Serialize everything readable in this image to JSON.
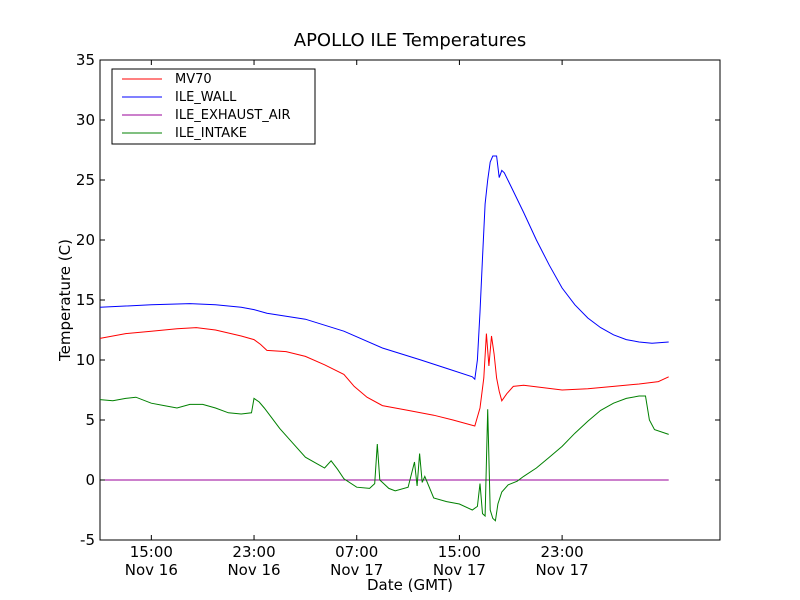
{
  "chart_data": {
    "type": "line",
    "title": "APOLLO ILE Temperatures",
    "xlabel": "Date (GMT)",
    "ylabel": "Temperature (C)",
    "ylim": [
      -5,
      35
    ],
    "xlim_hours": [
      11.0,
      59.3
    ],
    "grid": false,
    "legend_position": "top-left",
    "y_ticks": [
      "-5",
      "0",
      "5",
      "10",
      "15",
      "20",
      "25",
      "30",
      "35"
    ],
    "x_ticks": [
      {
        "hour": 15,
        "time": "15:00",
        "date": "Nov 16"
      },
      {
        "hour": 23,
        "time": "23:00",
        "date": "Nov 16"
      },
      {
        "hour": 31,
        "time": "07:00",
        "date": "Nov 17"
      },
      {
        "hour": 39,
        "time": "15:00",
        "date": "Nov 17"
      },
      {
        "hour": 47,
        "time": "23:00",
        "date": "Nov 17"
      }
    ],
    "series": [
      {
        "name": "MV70",
        "color": "#ff0000",
        "points": [
          [
            11.0,
            11.8
          ],
          [
            13.0,
            12.2
          ],
          [
            15.0,
            12.4
          ],
          [
            17.0,
            12.6
          ],
          [
            18.5,
            12.7
          ],
          [
            20.0,
            12.5
          ],
          [
            22.0,
            12.0
          ],
          [
            23.0,
            11.7
          ],
          [
            23.5,
            11.3
          ],
          [
            24.0,
            10.8
          ],
          [
            25.5,
            10.7
          ],
          [
            27.0,
            10.3
          ],
          [
            28.5,
            9.6
          ],
          [
            30.0,
            8.8
          ],
          [
            30.8,
            7.8
          ],
          [
            31.8,
            6.9
          ],
          [
            33.0,
            6.2
          ],
          [
            35.0,
            5.8
          ],
          [
            37.0,
            5.4
          ],
          [
            38.5,
            5.0
          ],
          [
            40.2,
            4.5
          ],
          [
            40.6,
            6.0
          ],
          [
            40.9,
            8.5
          ],
          [
            41.1,
            12.2
          ],
          [
            41.3,
            9.5
          ],
          [
            41.5,
            12.0
          ],
          [
            41.7,
            10.5
          ],
          [
            41.9,
            8.5
          ],
          [
            42.1,
            7.4
          ],
          [
            42.3,
            6.6
          ],
          [
            42.7,
            7.2
          ],
          [
            43.2,
            7.8
          ],
          [
            44.0,
            7.9
          ],
          [
            45.5,
            7.7
          ],
          [
            47.0,
            7.5
          ],
          [
            49.0,
            7.6
          ],
          [
            51.0,
            7.8
          ],
          [
            53.0,
            8.0
          ],
          [
            54.5,
            8.2
          ],
          [
            55.3,
            8.6
          ]
        ]
      },
      {
        "name": "ILE_WALL",
        "color": "#0000ff",
        "points": [
          [
            11.0,
            14.4
          ],
          [
            13.0,
            14.5
          ],
          [
            15.0,
            14.6
          ],
          [
            18.0,
            14.7
          ],
          [
            20.0,
            14.6
          ],
          [
            22.0,
            14.4
          ],
          [
            23.0,
            14.2
          ],
          [
            24.0,
            13.9
          ],
          [
            27.0,
            13.4
          ],
          [
            30.0,
            12.4
          ],
          [
            33.0,
            11.0
          ],
          [
            36.0,
            10.0
          ],
          [
            38.0,
            9.3
          ],
          [
            40.0,
            8.6
          ],
          [
            40.2,
            8.4
          ],
          [
            40.4,
            10.0
          ],
          [
            40.6,
            14.0
          ],
          [
            40.8,
            18.5
          ],
          [
            41.0,
            23.0
          ],
          [
            41.2,
            25.0
          ],
          [
            41.4,
            26.5
          ],
          [
            41.6,
            27.0
          ],
          [
            41.9,
            27.0
          ],
          [
            42.1,
            25.2
          ],
          [
            42.3,
            25.8
          ],
          [
            42.5,
            25.6
          ],
          [
            43.0,
            24.5
          ],
          [
            44.0,
            22.3
          ],
          [
            45.0,
            20.0
          ],
          [
            46.0,
            17.9
          ],
          [
            47.0,
            16.0
          ],
          [
            48.0,
            14.6
          ],
          [
            49.0,
            13.5
          ],
          [
            50.0,
            12.7
          ],
          [
            51.0,
            12.1
          ],
          [
            52.0,
            11.7
          ],
          [
            53.0,
            11.5
          ],
          [
            54.0,
            11.4
          ],
          [
            55.3,
            11.5
          ]
        ]
      },
      {
        "name": "ILE_EXHAUST_AIR",
        "color": "#990099",
        "points": [
          [
            11.0,
            0.0
          ],
          [
            55.3,
            0.0
          ]
        ]
      },
      {
        "name": "ILE_INTAKE",
        "color": "#008000",
        "points": [
          [
            11.0,
            6.7
          ],
          [
            12.0,
            6.6
          ],
          [
            13.0,
            6.8
          ],
          [
            13.8,
            6.9
          ],
          [
            15.0,
            6.4
          ],
          [
            16.0,
            6.2
          ],
          [
            17.0,
            6.0
          ],
          [
            18.0,
            6.3
          ],
          [
            19.0,
            6.3
          ],
          [
            20.0,
            6.0
          ],
          [
            21.0,
            5.6
          ],
          [
            22.0,
            5.5
          ],
          [
            22.8,
            5.6
          ],
          [
            23.0,
            6.8
          ],
          [
            23.4,
            6.5
          ],
          [
            23.8,
            6.0
          ],
          [
            24.3,
            5.3
          ],
          [
            25.0,
            4.3
          ],
          [
            26.0,
            3.1
          ],
          [
            27.0,
            1.9
          ],
          [
            28.0,
            1.3
          ],
          [
            28.5,
            1.0
          ],
          [
            29.0,
            1.6
          ],
          [
            29.5,
            0.9
          ],
          [
            30.0,
            0.1
          ],
          [
            31.0,
            -0.6
          ],
          [
            32.0,
            -0.7
          ],
          [
            32.4,
            -0.3
          ],
          [
            32.6,
            3.0
          ],
          [
            32.8,
            0.0
          ],
          [
            33.5,
            -0.7
          ],
          [
            34.0,
            -0.9
          ],
          [
            35.0,
            -0.6
          ],
          [
            35.5,
            1.5
          ],
          [
            35.7,
            -0.5
          ],
          [
            35.9,
            2.2
          ],
          [
            36.1,
            -0.2
          ],
          [
            36.3,
            0.3
          ],
          [
            37.0,
            -1.5
          ],
          [
            38.0,
            -1.8
          ],
          [
            39.0,
            -2.0
          ],
          [
            40.0,
            -2.5
          ],
          [
            40.4,
            -2.2
          ],
          [
            40.6,
            -0.3
          ],
          [
            40.8,
            -2.8
          ],
          [
            41.0,
            -3.0
          ],
          [
            41.2,
            5.9
          ],
          [
            41.4,
            -2.5
          ],
          [
            41.6,
            -3.2
          ],
          [
            41.8,
            -3.4
          ],
          [
            42.0,
            -2.0
          ],
          [
            42.3,
            -1.0
          ],
          [
            42.8,
            -0.4
          ],
          [
            43.5,
            -0.1
          ],
          [
            44.0,
            0.3
          ],
          [
            45.0,
            1.0
          ],
          [
            46.0,
            1.9
          ],
          [
            47.0,
            2.8
          ],
          [
            48.0,
            3.9
          ],
          [
            49.0,
            4.9
          ],
          [
            50.0,
            5.8
          ],
          [
            51.0,
            6.4
          ],
          [
            52.0,
            6.8
          ],
          [
            53.0,
            7.0
          ],
          [
            53.5,
            7.0
          ],
          [
            53.8,
            5.0
          ],
          [
            54.2,
            4.2
          ],
          [
            55.3,
            3.8
          ]
        ]
      }
    ]
  }
}
